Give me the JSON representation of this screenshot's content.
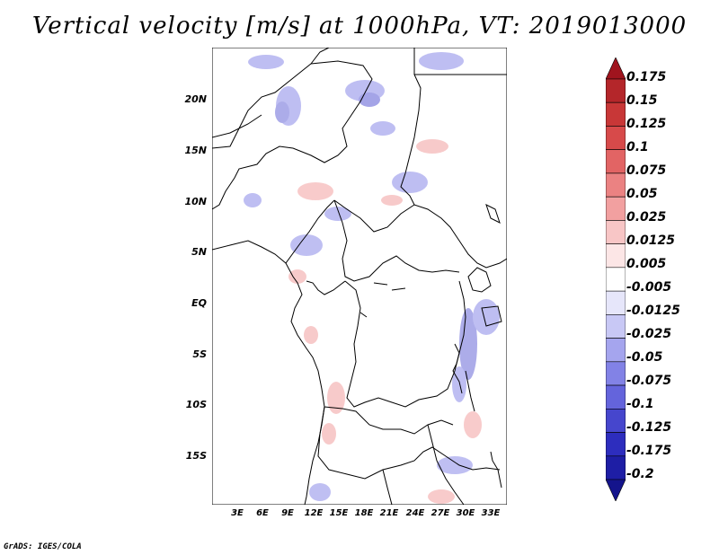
{
  "title": "Vertical velocity [m/s] at 1000hPa, VT: 2019013000",
  "credit": "GrADS: IGES/COLA",
  "map": {
    "lat_labels": [
      "20N",
      "15N",
      "10N",
      "5N",
      "EQ",
      "5S",
      "10S",
      "15S"
    ],
    "lon_labels": [
      "3E",
      "6E",
      "9E",
      "12E",
      "15E",
      "18E",
      "21E",
      "24E",
      "27E",
      "30E",
      "33E"
    ]
  },
  "colorbar": {
    "labels": [
      "0.175",
      "0.15",
      "0.125",
      "0.1",
      "0.075",
      "0.05",
      "0.025",
      "0.0125",
      "0.005",
      "-0.005",
      "-0.0125",
      "-0.025",
      "-0.05",
      "-0.075",
      "-0.1",
      "-0.125",
      "-0.175",
      "-0.2"
    ],
    "colors": [
      "#a0141e",
      "#b4262a",
      "#c83737",
      "#d74a4a",
      "#e26464",
      "#eb8282",
      "#f2a0a0",
      "#f8c6c6",
      "#fce6e6",
      "#ffffff",
      "#e6e6fa",
      "#c8c8f5",
      "#a5a5ee",
      "#8282e6",
      "#6464dc",
      "#4646cd",
      "#2d2dbe",
      "#1e1ea5",
      "#14148c"
    ]
  }
}
